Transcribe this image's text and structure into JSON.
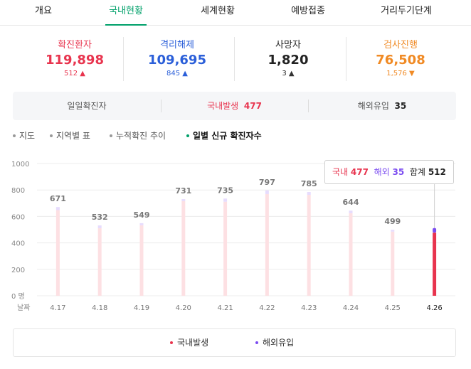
{
  "tabs": [
    "개요",
    "국내현황",
    "세계현황",
    "예방접종",
    "거리두기단계"
  ],
  "active_tab": 1,
  "stats": [
    {
      "label": "확진환자",
      "value": "119,898",
      "delta": "512",
      "dir": "up",
      "color": "#e8344e",
      "delta_color": "#e8344e",
      "arrow_color": "#e8344e"
    },
    {
      "label": "격리해제",
      "value": "109,695",
      "delta": "845",
      "dir": "up",
      "color": "#2b5fd9",
      "delta_color": "#2b5fd9",
      "arrow_color": "#2b5fd9"
    },
    {
      "label": "사망자",
      "value": "1,820",
      "delta": "3",
      "dir": "up",
      "color": "#222222",
      "delta_color": "#222222",
      "arrow_color": "#333333"
    },
    {
      "label": "검사진행",
      "value": "76,508",
      "delta": "1,576",
      "dir": "down",
      "color": "#f08a24",
      "delta_color": "#f08a24",
      "arrow_color": "#f08a24"
    }
  ],
  "split": {
    "daily_label": "일일확진자",
    "domestic_label": "국내발생",
    "domestic_value": "477",
    "overseas_label": "해외유입",
    "overseas_value": "35"
  },
  "view_options": [
    "지도",
    "지역별 표",
    "누적확진 추이",
    "일별 신규 확진자수"
  ],
  "active_option": 3,
  "tooltip": {
    "domestic_label": "국내",
    "domestic_value": "477",
    "overseas_label": "해외",
    "overseas_value": "35",
    "total_label": "합계",
    "total_value": "512"
  },
  "legend": [
    {
      "label": "국내발생",
      "color": "#e8344e"
    },
    {
      "label": "해외유입",
      "color": "#7b4cf0"
    }
  ],
  "colors": {
    "accent": "#00a06a",
    "domestic": "#e8344e",
    "overseas": "#7b4cf0",
    "domestic_faded": "#fde0e3",
    "overseas_faded": "#e7dcfd"
  },
  "chart_data": {
    "type": "bar",
    "stacked": true,
    "xlabel": "날짜",
    "categories": [
      "4.17",
      "4.18",
      "4.19",
      "4.20",
      "4.21",
      "4.22",
      "4.23",
      "4.24",
      "4.25",
      "4.26"
    ],
    "series": [
      {
        "name": "국내발생",
        "values": [
          648,
          511,
          533,
          716,
          711,
          769,
          763,
          624,
          485,
          477
        ]
      },
      {
        "name": "해외유입",
        "values": [
          23,
          21,
          16,
          15,
          24,
          28,
          22,
          20,
          14,
          35
        ]
      }
    ],
    "totals": [
      671,
      532,
      549,
      731,
      735,
      797,
      785,
      644,
      499,
      512
    ],
    "show_total_labels": [
      true,
      true,
      true,
      true,
      true,
      true,
      true,
      true,
      true,
      false
    ],
    "highlighted_index": 9,
    "ylim": [
      0,
      1000
    ],
    "yticks": [
      0,
      200,
      400,
      600,
      800,
      1000
    ],
    "ytick_labels": [
      "0 명",
      "200",
      "400",
      "600",
      "800",
      "1000"
    ],
    "grid": true,
    "legend_position": "bottom"
  }
}
